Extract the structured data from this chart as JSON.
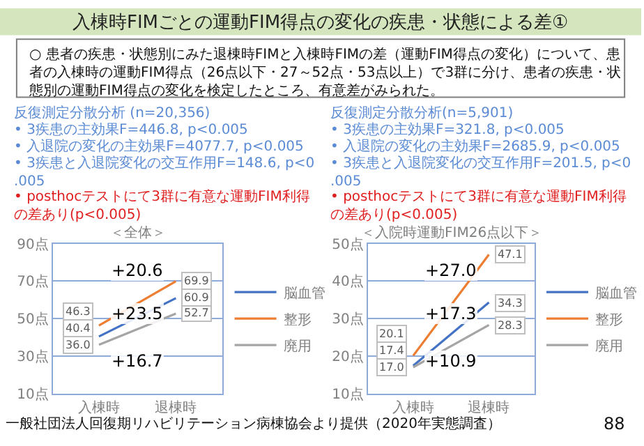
{
  "chart_data": [
    {
      "type": "other",
      "title": "入棟時FIMごとの運動FIM得点の変化の疾患・状態による差①",
      "subtitle": "○ 患者の疾患・状態別にみた退棟時FIMと入棟時FIMの差（運動FIM得点の変化）について、患者の入棟時の運動FIM得点（26点以下・27～52点・53点以上）で3群に分け、患者の疾患・状態別の運動FIM得点の変化を検定したところ、有意差がみられた。",
      "annotations": [
        "一般社団法人回復期リハビリテーション病棟協会より提供（2020年実態調査）",
        "88"
      ]
    },
    {
      "type": "other",
      "annotations": [
        "反復測定分散分析 (n=20,356)",
        "• 3疾患の主効果F=446.8, p<0.005",
        "• 入退院の変化の主効果F=4077.7, p<0.005",
        "• 3疾患と入退院変化の交互作用F=148.6, p<0.005",
        "• posthocテストにて3群に有意な運動FIM利得の差あり(p<0.005)"
      ]
    },
    {
      "type": "other",
      "annotations": [
        "反復測定分散分析(n=5,901)",
        "• 3疾患の主効果F=321.8, p<0.005",
        "• 入退院の変化の主効果F=2685.9, p<0.005",
        "• 3疾患と入退院変化の交互作用F=201.5, p<0.005",
        "• posthocテストにて3群に有意な運動FIM利得の差あり(p<0.005)"
      ]
    },
    {
      "type": "line",
      "title": "＜全体＞",
      "categories": [
        "入棟時",
        "退棟時"
      ],
      "series": [
        {
          "name": "脳血管",
          "color": "#4472c4",
          "values": [
            40.4,
            60.9
          ],
          "value_labels": [
            "40.4",
            "60.9"
          ]
        },
        {
          "name": "整形",
          "color": "#ed7d31",
          "values": [
            46.3,
            69.9
          ],
          "value_labels": [
            "46.3",
            "69.9"
          ]
        },
        {
          "name": "廃用",
          "color": "#a5a5a5",
          "values": [
            36.0,
            52.7
          ],
          "value_labels": [
            "36.0",
            "52.7"
          ]
        }
      ],
      "ylim": [
        10,
        90
      ],
      "yticks": [
        {
          "value": 10,
          "label": "10点"
        },
        {
          "value": 30,
          "label": "30点"
        },
        {
          "value": 50,
          "label": "50点"
        },
        {
          "value": 70,
          "label": "70点"
        },
        {
          "value": 90,
          "label": "90点"
        }
      ],
      "grid": "y",
      "legend": "right",
      "annotations": [
        "+20.6",
        "+23.5",
        "+16.7"
      ]
    },
    {
      "type": "line",
      "title": "＜入院時運動FIM26点以下＞",
      "categories": [
        "入棟時",
        "退棟時"
      ],
      "series": [
        {
          "name": "脳血管",
          "color": "#4472c4",
          "values": [
            17.4,
            34.3
          ],
          "value_labels": [
            "17.4",
            "34.3"
          ]
        },
        {
          "name": "整形",
          "color": "#ed7d31",
          "values": [
            20.1,
            47.1
          ],
          "value_labels": [
            "20.1",
            "47.1"
          ]
        },
        {
          "name": "廃用",
          "color": "#a5a5a5",
          "values": [
            17.0,
            28.3
          ],
          "value_labels": [
            "17.0",
            "28.3"
          ]
        }
      ],
      "ylim": [
        10,
        50
      ],
      "yticks": [
        {
          "value": 10,
          "label": "10点"
        },
        {
          "value": 20,
          "label": "20点"
        },
        {
          "value": 30,
          "label": "30点"
        },
        {
          "value": 40,
          "label": "40点"
        },
        {
          "value": 50,
          "label": "50点"
        }
      ],
      "grid": "y",
      "legend": "right",
      "annotations": [
        "+27.0",
        "+17.3",
        "+10.9"
      ]
    }
  ]
}
